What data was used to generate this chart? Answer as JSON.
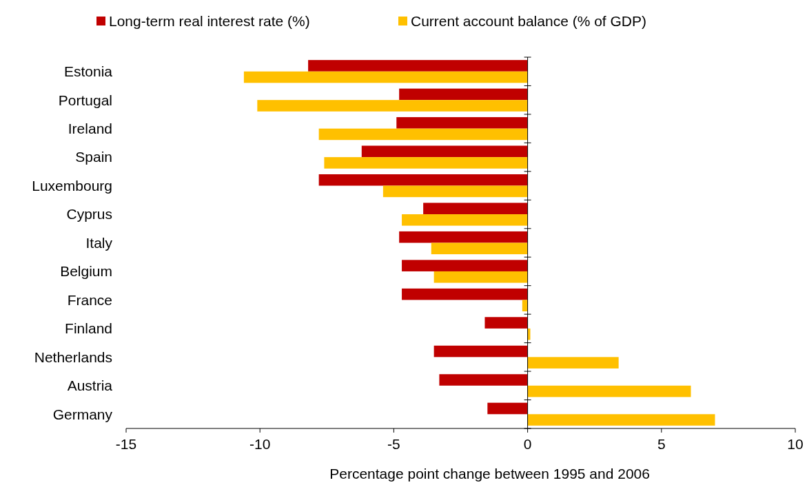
{
  "chart_data": {
    "type": "bar",
    "orientation": "horizontal",
    "xlabel": "Percentage point change between 1995 and 2006",
    "categories": [
      "Estonia",
      "Portugal",
      "Ireland",
      "Spain",
      "Luxembourg",
      "Cyprus",
      "Italy",
      "Belgium",
      "France",
      "Finland",
      "Netherlands",
      "Austria",
      "Germany"
    ],
    "series": [
      {
        "name": "Long-term real interest rate (%)",
        "color": "#c00000",
        "values": [
          -8.2,
          -4.8,
          -4.9,
          -6.2,
          -7.8,
          -3.9,
          -4.8,
          -4.7,
          -4.7,
          -1.6,
          -3.5,
          -3.3,
          -1.5
        ]
      },
      {
        "name": "Current account balance (% of GDP)",
        "color": "#ffc000",
        "values": [
          -10.6,
          -10.1,
          -7.8,
          -7.6,
          -5.4,
          -4.7,
          -3.6,
          -3.5,
          -0.2,
          0.1,
          3.4,
          6.1,
          7.0
        ]
      }
    ],
    "xlim": [
      -15,
      10
    ],
    "xticks": [
      -15,
      -10,
      -5,
      0,
      5,
      10
    ],
    "legend": "top"
  }
}
